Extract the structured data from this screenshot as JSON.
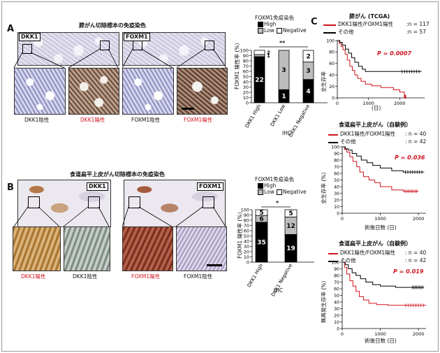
{
  "panel_letters": [
    "A",
    "B",
    "C"
  ],
  "panel_a": {
    "title": "膵がん切除標本の免疫染色",
    "low_labels": [
      "DKK1",
      "FOXM1"
    ],
    "captions": [
      "DKK1陰性",
      "DKK1陽性",
      "FOXM1陰性",
      "FOXM1陽性"
    ],
    "chart_title": "FOXM1免疫染色",
    "legend": [
      "High",
      "Low",
      "Negative"
    ],
    "ylabel": "FOXM1 陽性率 (%)",
    "yticks": [
      "0",
      "10",
      "20",
      "30",
      "40",
      "50",
      "60",
      "70",
      "80",
      "90",
      "100"
    ],
    "categories": [
      "DKK1 High",
      "DKK1 Low",
      "DKK1 Negative"
    ],
    "counts": [
      [
        "22",
        "1",
        "2"
      ],
      [
        "1",
        "3",
        ""
      ],
      [
        "4",
        "3",
        "2"
      ]
    ],
    "xgroup": "IHC",
    "sig": "**"
  },
  "panel_b": {
    "title": "食道扁平上皮がん切除標本の免疫染色",
    "low_labels": [
      "DKK1",
      "FOXM1"
    ],
    "captions": [
      "DKK1陽性",
      "DKK1陰性",
      "FOXM1陽性",
      "FOXM1陰性"
    ],
    "chart_title": "FOXM1免疫染色",
    "legend": [
      "High",
      "Low",
      "Negative"
    ],
    "ylabel": "FOXM1 陽性率 (%)",
    "yticks": [
      "0",
      "10",
      "20",
      "30",
      "40",
      "50",
      "60",
      "70",
      "80",
      "90",
      "100"
    ],
    "categories": [
      "DKK1 High",
      "DKK1 Negative"
    ],
    "counts": [
      [
        "35",
        "6",
        "5"
      ],
      [
        "19",
        "12",
        "5"
      ]
    ],
    "xgroup": "IHC",
    "sig": "*"
  },
  "panel_c": {
    "plots": [
      {
        "title": "膵がん (TCGA)",
        "legend": [
          {
            "label": "DKK1陽性/FOXM1陽性",
            "n": ":n = 117"
          },
          {
            "label": "その他",
            "n": ":n = 57"
          }
        ],
        "ylabel": "全生存率",
        "xlabel": "(日)",
        "pvalue": "P = 0.0007",
        "xticks": [
          "0",
          "1000",
          "2000"
        ],
        "yticks": [
          "0",
          "20",
          "40",
          "60",
          "80",
          "100"
        ]
      },
      {
        "title": "食道扁平上皮がん（自験例）",
        "legend": [
          {
            "label": "DKK1陽性/FOXM1陽性",
            "n": ": n = 40"
          },
          {
            "label": "その他",
            "n": ": n = 42"
          }
        ],
        "ylabel": "全生存率 (%)",
        "xlabel": "術後日数 (日)",
        "pvalue": "P = 0.036",
        "xticks": [
          "0",
          "1000",
          "2000"
        ],
        "yticks": [
          "0",
          "10",
          "20",
          "30",
          "40",
          "50",
          "60",
          "70",
          "80",
          "90",
          "100"
        ]
      },
      {
        "title": "食道扁平上皮がん（自験例）",
        "legend": [
          {
            "label": "DKK1陽性/FOXM1陽性",
            "n": ": n = 40"
          },
          {
            "label": "その他",
            "n": ": n = 42"
          }
        ],
        "ylabel": "無再発生存率 (%)",
        "xlabel": "術後日数 (日)",
        "pvalue": "P = 0.019",
        "xticks": [
          "0",
          "1000",
          "2000"
        ],
        "yticks": [
          "0",
          "10",
          "20",
          "30",
          "40",
          "50",
          "60",
          "70",
          "80",
          "90",
          "100"
        ]
      }
    ]
  },
  "colors": {
    "red": "#d0141e",
    "high": "#000000",
    "low": "#bdbdbd",
    "negative": "#ffffff"
  },
  "chart_data": [
    {
      "type": "bar",
      "title": "FOXM1免疫染色 (膵がん)",
      "categories": [
        "DKK1 High",
        "DKK1 Low",
        "DKK1 Negative"
      ],
      "series": [
        {
          "name": "High",
          "values": [
            22,
            1,
            4
          ]
        },
        {
          "name": "Low",
          "values": [
            1,
            3,
            3
          ]
        },
        {
          "name": "Negative",
          "values": [
            2,
            0,
            2
          ]
        }
      ],
      "percent": {
        "High": [
          88,
          25,
          44.4
        ],
        "Low": [
          4,
          75,
          33.3
        ],
        "Negative": [
          8,
          0,
          22.2
        ]
      },
      "ylabel": "FOXM1 陽性率 (%)",
      "ylim": [
        0,
        100
      ],
      "stacked": true
    },
    {
      "type": "bar",
      "title": "FOXM1免疫染色 (食道扁平上皮がん)",
      "categories": [
        "DKK1 High",
        "DKK1 Negative"
      ],
      "series": [
        {
          "name": "High",
          "values": [
            35,
            19
          ]
        },
        {
          "name": "Low",
          "values": [
            6,
            12
          ]
        },
        {
          "name": "Negative",
          "values": [
            5,
            5
          ]
        }
      ],
      "percent": {
        "High": [
          76.1,
          52.8
        ],
        "Low": [
          13.0,
          33.3
        ],
        "Negative": [
          10.9,
          13.9
        ]
      },
      "ylabel": "FOXM1 陽性率 (%)",
      "ylim": [
        0,
        100
      ],
      "stacked": true
    },
    {
      "type": "line",
      "title": "膵がん (TCGA)",
      "xlim": [
        0,
        2800
      ],
      "ylim": [
        0,
        100
      ],
      "series": [
        {
          "name": "DKK1陽性/FOXM1陽性",
          "color": "red",
          "points": [
            [
              0,
              100
            ],
            [
              60,
              95
            ],
            [
              120,
              90
            ],
            [
              180,
              84
            ],
            [
              250,
              76
            ],
            [
              320,
              66
            ],
            [
              400,
              55
            ],
            [
              480,
              48
            ],
            [
              560,
              40
            ],
            [
              650,
              34
            ],
            [
              760,
              29
            ],
            [
              900,
              24
            ],
            [
              1100,
              21
            ],
            [
              1400,
              18
            ],
            [
              1800,
              14
            ],
            [
              2000,
              10
            ],
            [
              2150,
              2
            ],
            [
              2200,
              2
            ]
          ]
        },
        {
          "name": "その他",
          "color": "black",
          "points": [
            [
              0,
              100
            ],
            [
              80,
              97
            ],
            [
              160,
              92
            ],
            [
              260,
              85
            ],
            [
              360,
              78
            ],
            [
              460,
              70
            ],
            [
              560,
              62
            ],
            [
              680,
              55
            ],
            [
              800,
              50
            ],
            [
              900,
              46
            ],
            [
              1200,
              46
            ],
            [
              1500,
              46
            ],
            [
              2000,
              46
            ],
            [
              2700,
              46
            ]
          ]
        }
      ]
    },
    {
      "type": "line",
      "title": "食道扁平上皮がん 全生存率",
      "xlim": [
        0,
        2200
      ],
      "ylim": [
        0,
        100
      ],
      "series": [
        {
          "name": "DKK1陽性/FOXM1陽性",
          "color": "red",
          "points": [
            [
              0,
              100
            ],
            [
              60,
              96
            ],
            [
              120,
              92
            ],
            [
              200,
              85
            ],
            [
              280,
              78
            ],
            [
              380,
              70
            ],
            [
              460,
              62
            ],
            [
              560,
              55
            ],
            [
              700,
              50
            ],
            [
              850,
              46
            ],
            [
              1000,
              40
            ],
            [
              1300,
              35
            ],
            [
              1600,
              33
            ],
            [
              2000,
              33
            ]
          ]
        },
        {
          "name": "その他",
          "color": "black",
          "points": [
            [
              0,
              100
            ],
            [
              80,
              97
            ],
            [
              160,
              95
            ],
            [
              260,
              90
            ],
            [
              380,
              86
            ],
            [
              500,
              80
            ],
            [
              650,
              76
            ],
            [
              800,
              72
            ],
            [
              1000,
              68
            ],
            [
              1300,
              64
            ],
            [
              1600,
              62
            ],
            [
              2150,
              62
            ]
          ]
        }
      ]
    },
    {
      "type": "line",
      "title": "食道扁平上皮がん 無再発生存率",
      "xlim": [
        0,
        2200
      ],
      "ylim": [
        0,
        100
      ],
      "series": [
        {
          "name": "DKK1陽性/FOXM1陽性",
          "color": "red",
          "points": [
            [
              0,
              100
            ],
            [
              60,
              92
            ],
            [
              120,
              82
            ],
            [
              200,
              72
            ],
            [
              280,
              64
            ],
            [
              360,
              56
            ],
            [
              450,
              48
            ],
            [
              560,
              43
            ],
            [
              700,
              38
            ],
            [
              900,
              36
            ],
            [
              1200,
              35
            ],
            [
              1600,
              35
            ],
            [
              2200,
              35
            ]
          ]
        },
        {
          "name": "その他",
          "color": "black",
          "points": [
            [
              0,
              100
            ],
            [
              80,
              96
            ],
            [
              160,
              90
            ],
            [
              260,
              84
            ],
            [
              360,
              80
            ],
            [
              480,
              75
            ],
            [
              620,
              70
            ],
            [
              800,
              66
            ],
            [
              1000,
              64
            ],
            [
              1400,
              62
            ],
            [
              1800,
              62
            ],
            [
              2150,
              62
            ]
          ]
        }
      ]
    }
  ]
}
